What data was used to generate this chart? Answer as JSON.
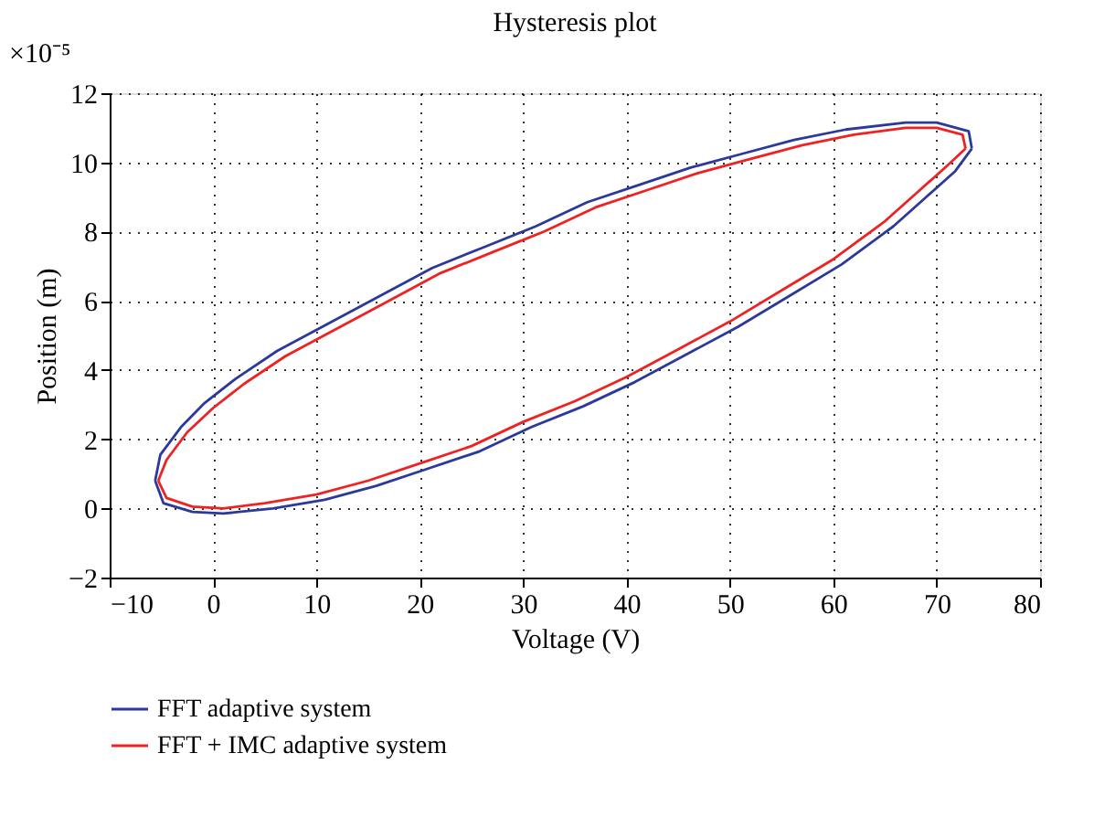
{
  "chart_data": {
    "type": "line",
    "title": "Hysteresis plot",
    "xlabel": "Voltage (V)",
    "ylabel": "Position (m)",
    "annotations": [
      "×10⁻⁵"
    ],
    "xlim": [
      -10,
      80
    ],
    "xticks": [
      -10,
      0,
      10,
      20,
      30,
      40,
      50,
      60,
      70,
      80
    ],
    "ylim": [
      -2,
      12
    ],
    "yticks": [
      -2,
      0,
      2,
      4,
      6,
      8,
      10,
      12
    ],
    "grid": true,
    "legend": "bottom",
    "line_style": "solid",
    "marker": "none",
    "series": [
      {
        "name": "FFT adaptive system",
        "color": "#2b3a9a",
        "x": [
          -5.6,
          -4.8,
          -2,
          1,
          5.8,
          10.8,
          15.8,
          20.8,
          25.8,
          30.8,
          35.8,
          40.8,
          45.8,
          50.8,
          55.8,
          60.8,
          65.8,
          68.8,
          71.8,
          73.4
        ],
        "values": [
          0.8,
          0.15,
          -0.1,
          -0.15,
          0,
          0.25,
          0.65,
          1.15,
          1.65,
          2.35,
          2.95,
          3.65,
          4.45,
          5.25,
          6.15,
          7.05,
          8.15,
          8.95,
          9.75,
          10.4
        ]
      },
      {
        "color": "#2b3a9a",
        "x": [
          73.4,
          73.1,
          70,
          67,
          61.2,
          56.2,
          51.2,
          46.2,
          41.2,
          36.2,
          31.2,
          26.2,
          21.2,
          16.2,
          11.2,
          6.2,
          2.2,
          -0.8,
          -3.1,
          -5.1,
          -5.6
        ],
        "values": [
          10.4,
          10.9,
          11.15,
          11.15,
          10.95,
          10.65,
          10.25,
          9.85,
          9.35,
          8.85,
          8.15,
          7.55,
          6.95,
          6.15,
          5.35,
          4.55,
          3.75,
          3.05,
          2.35,
          1.55,
          0.8
        ]
      },
      {
        "name": "FFT + IMC adaptive system",
        "color": "#ee2222",
        "x": [
          -5.3,
          -4.5,
          -2,
          1,
          5,
          10,
          15,
          20,
          25,
          30,
          35,
          40,
          45,
          50,
          55,
          60,
          65,
          68,
          71,
          72.8
        ],
        "values": [
          0.8,
          0.3,
          0.05,
          0,
          0.15,
          0.4,
          0.8,
          1.3,
          1.8,
          2.5,
          3.1,
          3.8,
          4.6,
          5.4,
          6.3,
          7.2,
          8.3,
          9.1,
          9.9,
          10.4
        ]
      },
      {
        "color": "#ee2222",
        "x": [
          72.8,
          72.5,
          70,
          67,
          62,
          57,
          52,
          47,
          42,
          37,
          32,
          27,
          22,
          17,
          12,
          7,
          3,
          0,
          -2.5,
          -4.5,
          -5.3
        ],
        "values": [
          10.4,
          10.8,
          11.0,
          11.0,
          10.8,
          10.5,
          10.1,
          9.7,
          9.2,
          8.7,
          8.0,
          7.4,
          6.8,
          6.0,
          5.2,
          4.4,
          3.6,
          2.9,
          2.2,
          1.4,
          0.8
        ]
      }
    ]
  }
}
